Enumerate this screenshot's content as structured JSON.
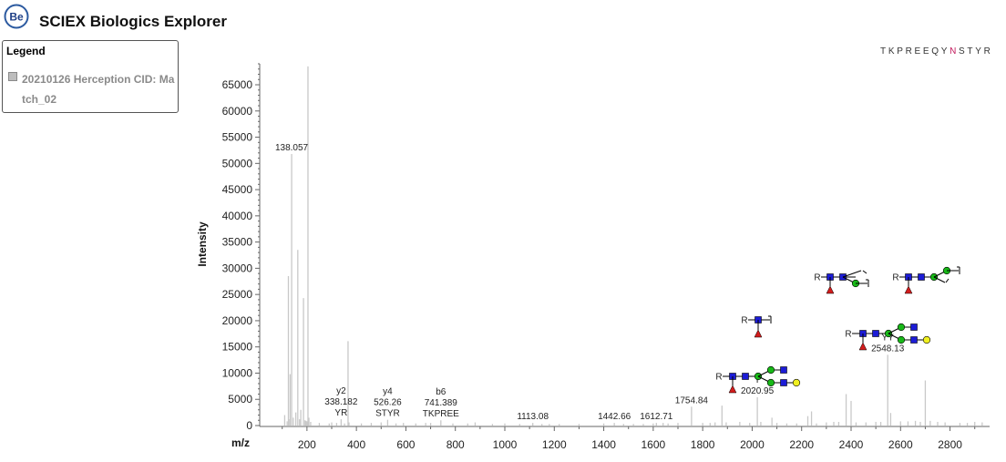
{
  "app": {
    "title": "SCIEX Biologics Explorer",
    "logo_text": "Be"
  },
  "legend": {
    "title": "Legend",
    "items": [
      {
        "label": "20210126 Herception CID: Match_02",
        "color": "#bdbdbd"
      }
    ]
  },
  "sequence": {
    "text": "TKPREEQYNSTYR",
    "highlight_index": 8,
    "highlight_color": "#c2185b"
  },
  "chart_data": {
    "type": "bar",
    "xlabel": "m/z",
    "ylabel": "Intensity",
    "xlim": [
      20,
      2960
    ],
    "ylim": [
      0,
      69000
    ],
    "xticks": [
      200,
      400,
      600,
      800,
      1000,
      1200,
      1400,
      1600,
      1800,
      2000,
      2200,
      2400,
      2600,
      2800
    ],
    "yticks": [
      0,
      5000,
      10000,
      15000,
      20000,
      25000,
      30000,
      35000,
      40000,
      45000,
      50000,
      55000,
      60000,
      65000
    ],
    "bar_color": "#c8c8c8",
    "peaks": [
      [
        110,
        2000
      ],
      [
        120,
        800
      ],
      [
        125,
        28500
      ],
      [
        130,
        1200
      ],
      [
        132,
        9800
      ],
      [
        138.057,
        51800
      ],
      [
        145,
        1500
      ],
      [
        155,
        2500
      ],
      [
        163,
        33500
      ],
      [
        170,
        1200
      ],
      [
        175,
        3000
      ],
      [
        186,
        24300
      ],
      [
        192,
        1000
      ],
      [
        196,
        900
      ],
      [
        200,
        800
      ],
      [
        204.09,
        68500
      ],
      [
        208,
        1500
      ],
      [
        215,
        700
      ],
      [
        250,
        500
      ],
      [
        290,
        400
      ],
      [
        300,
        600
      ],
      [
        320,
        500
      ],
      [
        338.182,
        1200
      ],
      [
        352,
        400
      ],
      [
        366.14,
        16100
      ],
      [
        370,
        600
      ],
      [
        420,
        400
      ],
      [
        460,
        500
      ],
      [
        500,
        600
      ],
      [
        526.26,
        1100
      ],
      [
        560,
        400
      ],
      [
        590,
        500
      ],
      [
        640,
        400
      ],
      [
        680,
        500
      ],
      [
        700,
        500
      ],
      [
        741.389,
        1000
      ],
      [
        790,
        400
      ],
      [
        850,
        400
      ],
      [
        880,
        600
      ],
      [
        950,
        300
      ],
      [
        1000,
        400
      ],
      [
        1060,
        300
      ],
      [
        1113.08,
        500
      ],
      [
        1150,
        300
      ],
      [
        1180,
        300
      ],
      [
        1220,
        300
      ],
      [
        1300,
        300
      ],
      [
        1400,
        400
      ],
      [
        1442.66,
        500
      ],
      [
        1480,
        300
      ],
      [
        1520,
        300
      ],
      [
        1560,
        300
      ],
      [
        1600,
        400
      ],
      [
        1612.71,
        500
      ],
      [
        1640,
        500
      ],
      [
        1660,
        400
      ],
      [
        1700,
        500
      ],
      [
        1754.84,
        3600
      ],
      [
        1800,
        500
      ],
      [
        1830,
        500
      ],
      [
        1850,
        600
      ],
      [
        1878,
        3800
      ],
      [
        1895,
        600
      ],
      [
        1950,
        700
      ],
      [
        1990,
        500
      ],
      [
        2020.95,
        5400
      ],
      [
        2035,
        700
      ],
      [
        2080,
        1500
      ],
      [
        2100,
        500
      ],
      [
        2140,
        400
      ],
      [
        2180,
        400
      ],
      [
        2225,
        1800
      ],
      [
        2240,
        2700
      ],
      [
        2260,
        400
      ],
      [
        2300,
        600
      ],
      [
        2330,
        700
      ],
      [
        2350,
        700
      ],
      [
        2380,
        6000
      ],
      [
        2400,
        4700
      ],
      [
        2420,
        600
      ],
      [
        2460,
        600
      ],
      [
        2500,
        700
      ],
      [
        2520,
        700
      ],
      [
        2548.13,
        13500
      ],
      [
        2560,
        2400
      ],
      [
        2600,
        800
      ],
      [
        2630,
        800
      ],
      [
        2660,
        900
      ],
      [
        2680,
        700
      ],
      [
        2700,
        8600
      ],
      [
        2720,
        900
      ],
      [
        2750,
        700
      ],
      [
        2780,
        600
      ],
      [
        2840,
        500
      ],
      [
        2870,
        500
      ],
      [
        2900,
        700
      ],
      [
        2930,
        600
      ]
    ],
    "annotations": [
      {
        "mz": 138.057,
        "lines": [
          "138.057"
        ]
      },
      {
        "mz": 338.182,
        "lines": [
          "y2",
          "338.182",
          "YR"
        ]
      },
      {
        "mz": 526.26,
        "lines": [
          "y4",
          "526.26",
          "STYR"
        ]
      },
      {
        "mz": 741.389,
        "lines": [
          "b6",
          "741.389",
          "TKPREE"
        ]
      },
      {
        "mz": 1113.08,
        "lines": [
          "1113.08"
        ]
      },
      {
        "mz": 1442.66,
        "lines": [
          "1442.66"
        ]
      },
      {
        "mz": 1612.71,
        "lines": [
          "1612.71"
        ]
      },
      {
        "mz": 1754.84,
        "lines": [
          "1754.84"
        ]
      },
      {
        "mz": 2020.95,
        "lines": [
          "Y",
          "2020.95"
        ]
      },
      {
        "mz": 2548.13,
        "lines": [
          "YY",
          "2548.13"
        ]
      }
    ],
    "glycan_labels": [
      "R"
    ],
    "glycan_colors": {
      "GlcNAc": "#1c1cd6",
      "Man": "#18b818",
      "Fuc": "#d21c1c",
      "Gal": "#f0f020"
    }
  }
}
